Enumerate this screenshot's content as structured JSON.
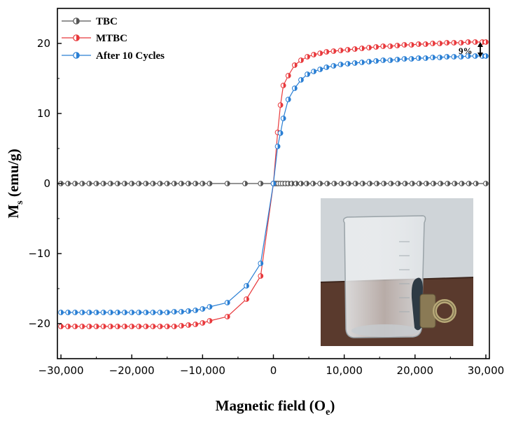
{
  "chart_data": {
    "type": "scatter",
    "xlabel": "Magnetic field (O",
    "xlabel_sub": "e",
    "xlabel_end": ")",
    "ylabel": "M",
    "ylabel_sub": "s",
    "ylabel_end": " (emu/g)",
    "xlim": [
      -30500,
      30500
    ],
    "ylim": [
      -25,
      25
    ],
    "xticks": [
      -30000,
      -20000,
      -10000,
      0,
      10000,
      20000,
      30000
    ],
    "xtick_labels": [
      "−30,000",
      "−20,000",
      "−10,000",
      "0",
      "10,000",
      "20,000",
      "30,000"
    ],
    "yticks": [
      -20,
      -10,
      0,
      10,
      20
    ],
    "ytick_labels": [
      "−20",
      "−10",
      "0",
      "10",
      "20"
    ],
    "legend_position": "top-left",
    "grid": false,
    "series": [
      {
        "name": "TBC",
        "color": "#555555",
        "x": [
          -30000,
          -29000,
          -28000,
          -27000,
          -26000,
          -25000,
          -24000,
          -23000,
          -22000,
          -21000,
          -20000,
          -19000,
          -18000,
          -17000,
          -16000,
          -15000,
          -14000,
          -13000,
          -12000,
          -11000,
          -10000,
          -9000,
          -6500,
          -4000,
          -1800,
          0,
          150,
          300,
          500,
          700,
          1000,
          1300,
          1700,
          2100,
          2600,
          3200,
          3900,
          4700,
          5600,
          6600,
          7600,
          8600,
          9600,
          10600,
          11600,
          12600,
          13600,
          14600,
          15600,
          16600,
          17600,
          18600,
          19600,
          20600,
          21600,
          22600,
          23600,
          24600,
          25600,
          26600,
          27600,
          28600,
          30000
        ],
        "y": [
          0,
          0,
          0,
          0,
          0,
          0,
          0,
          0,
          0,
          0,
          0,
          0,
          0,
          0,
          0,
          0,
          0,
          0,
          0,
          0,
          0,
          0,
          0,
          0,
          0,
          0,
          0,
          0,
          0,
          0,
          0,
          0,
          0,
          0,
          0,
          0,
          0,
          0,
          0,
          0,
          0,
          0,
          0,
          0,
          0,
          0,
          0,
          0,
          0,
          0,
          0,
          0,
          0,
          0,
          0,
          0,
          0,
          0,
          0,
          0,
          0,
          0,
          0
        ]
      },
      {
        "name": "MTBC",
        "color": "#e8393c",
        "x": [
          -30000,
          -29000,
          -28000,
          -27000,
          -26000,
          -25000,
          -24000,
          -23000,
          -22000,
          -21000,
          -20000,
          -19000,
          -18000,
          -17000,
          -16000,
          -15000,
          -14000,
          -13000,
          -12000,
          -11000,
          -10000,
          -9000,
          -6500,
          -3800,
          -1800,
          0,
          600,
          1000,
          1400,
          2100,
          3000,
          3900,
          4800,
          5700,
          6600,
          7500,
          8500,
          9500,
          10500,
          11500,
          12500,
          13500,
          14500,
          15500,
          16500,
          17500,
          18500,
          19500,
          20500,
          21500,
          22500,
          23500,
          24500,
          25500,
          26500,
          27500,
          28500,
          29500,
          30000
        ],
        "y": [
          -20.4,
          -20.4,
          -20.4,
          -20.4,
          -20.4,
          -20.4,
          -20.4,
          -20.4,
          -20.4,
          -20.4,
          -20.4,
          -20.4,
          -20.4,
          -20.4,
          -20.4,
          -20.4,
          -20.4,
          -20.3,
          -20.2,
          -20.1,
          -19.9,
          -19.6,
          -19.0,
          -16.5,
          -13.2,
          0,
          7.3,
          11.2,
          14.0,
          15.4,
          16.9,
          17.6,
          18.1,
          18.4,
          18.6,
          18.8,
          18.9,
          19.0,
          19.1,
          19.2,
          19.3,
          19.4,
          19.5,
          19.6,
          19.6,
          19.7,
          19.8,
          19.8,
          19.9,
          19.9,
          20.0,
          20.0,
          20.1,
          20.1,
          20.1,
          20.2,
          20.2,
          20.2,
          20.2
        ]
      },
      {
        "name": "After 10 Cycles",
        "color": "#2a7fd4",
        "x": [
          -30000,
          -29000,
          -28000,
          -27000,
          -26000,
          -25000,
          -24000,
          -23000,
          -22000,
          -21000,
          -20000,
          -19000,
          -18000,
          -17000,
          -16000,
          -15000,
          -14000,
          -13000,
          -12000,
          -11000,
          -10000,
          -9000,
          -6500,
          -3800,
          -1800,
          0,
          600,
          1000,
          1400,
          2100,
          3000,
          3900,
          4800,
          5700,
          6600,
          7500,
          8500,
          9500,
          10500,
          11500,
          12500,
          13500,
          14500,
          15500,
          16500,
          17500,
          18500,
          19500,
          20500,
          21500,
          22500,
          23500,
          24500,
          25500,
          26500,
          27500,
          28500,
          29500,
          30000
        ],
        "y": [
          -18.4,
          -18.4,
          -18.4,
          -18.4,
          -18.4,
          -18.4,
          -18.4,
          -18.4,
          -18.4,
          -18.4,
          -18.4,
          -18.4,
          -18.4,
          -18.4,
          -18.4,
          -18.4,
          -18.3,
          -18.3,
          -18.2,
          -18.1,
          -17.9,
          -17.6,
          -17.0,
          -14.6,
          -11.4,
          0,
          5.3,
          7.2,
          9.3,
          12.0,
          13.6,
          14.8,
          15.6,
          16.0,
          16.3,
          16.6,
          16.8,
          17.0,
          17.1,
          17.2,
          17.3,
          17.4,
          17.5,
          17.6,
          17.6,
          17.7,
          17.8,
          17.8,
          17.9,
          17.9,
          18.0,
          18.0,
          18.1,
          18.1,
          18.1,
          18.2,
          18.2,
          18.2,
          18.2
        ]
      }
    ],
    "annotations": [
      {
        "text": "9%"
      }
    ],
    "inset": {
      "type": "photo",
      "description_visible": false
    }
  }
}
